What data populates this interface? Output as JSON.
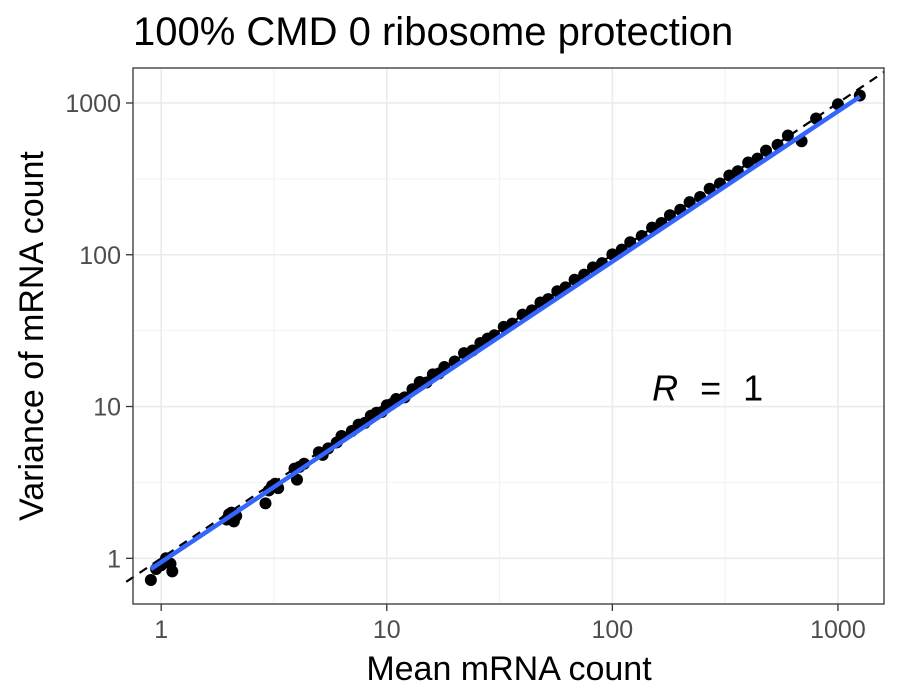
{
  "chart_data": {
    "type": "scatter",
    "title": "100% CMD 0 ribosome protection",
    "xlabel": "Mean mRNA count",
    "ylabel": "Variance of mRNA count",
    "x_scale": "log10",
    "y_scale": "log10",
    "xlim": [
      0.75,
      1600
    ],
    "ylim": [
      0.5,
      1700
    ],
    "x_ticks": [
      1,
      10,
      100,
      1000
    ],
    "x_tick_labels": [
      "1",
      "10",
      "100",
      "1000"
    ],
    "y_ticks": [
      1,
      10,
      100,
      1000
    ],
    "y_tick_labels": [
      "1",
      "10",
      "100",
      "1000"
    ],
    "grid": true,
    "annotation": {
      "symbol": "R",
      "equals": "=",
      "value": "1",
      "x": 150,
      "y": 11
    },
    "series": [
      {
        "name": "points",
        "kind": "scatter",
        "color": "#000000",
        "points": [
          [
            0.9,
            0.72
          ],
          [
            0.95,
            0.85
          ],
          [
            1.0,
            0.9
          ],
          [
            1.05,
            1.0
          ],
          [
            1.1,
            0.92
          ],
          [
            1.12,
            0.82
          ],
          [
            1.95,
            1.8
          ],
          [
            2.0,
            1.95
          ],
          [
            2.05,
            2.0
          ],
          [
            2.1,
            1.75
          ],
          [
            2.15,
            1.9
          ],
          [
            2.9,
            2.3
          ],
          [
            3.0,
            2.8
          ],
          [
            3.1,
            3.0
          ],
          [
            3.2,
            3.1
          ],
          [
            3.3,
            2.9
          ],
          [
            3.9,
            3.9
          ],
          [
            4.0,
            3.3
          ],
          [
            4.1,
            4.0
          ],
          [
            4.3,
            4.2
          ],
          [
            5.0,
            5.0
          ],
          [
            5.2,
            4.8
          ],
          [
            5.5,
            5.3
          ],
          [
            6.0,
            5.8
          ],
          [
            6.3,
            6.4
          ],
          [
            7.0,
            6.9
          ],
          [
            7.5,
            7.6
          ],
          [
            8.0,
            7.8
          ],
          [
            8.5,
            8.7
          ],
          [
            9.0,
            9.1
          ],
          [
            9.5,
            9.2
          ],
          [
            10.0,
            10.2
          ],
          [
            10.5,
            10.4
          ],
          [
            11.0,
            11.2
          ],
          [
            12.0,
            11.5
          ],
          [
            13.0,
            13.0
          ],
          [
            14.0,
            14.5
          ],
          [
            15.0,
            14.4
          ],
          [
            16.0,
            16.3
          ],
          [
            17.0,
            16.5
          ],
          [
            18.0,
            18.2
          ],
          [
            20.0,
            19.8
          ],
          [
            22.0,
            22.5
          ],
          [
            24.0,
            23.4
          ],
          [
            26.0,
            26.2
          ],
          [
            28.0,
            28.0
          ],
          [
            30.0,
            29.5
          ],
          [
            33.0,
            33.5
          ],
          [
            36.0,
            35.2
          ],
          [
            40.0,
            40.3
          ],
          [
            44.0,
            43.0
          ],
          [
            48.0,
            48.5
          ],
          [
            52.0,
            51.0
          ],
          [
            57.0,
            57.5
          ],
          [
            62.0,
            61.0
          ],
          [
            68.0,
            68.5
          ],
          [
            75.0,
            74.0
          ],
          [
            82.0,
            82.5
          ],
          [
            90.0,
            88.0
          ],
          [
            100.0,
            100.5
          ],
          [
            110.0,
            108.0
          ],
          [
            120.0,
            121.0
          ],
          [
            135.0,
            133.0
          ],
          [
            150.0,
            151.0
          ],
          [
            165.0,
            162.0
          ],
          [
            180.0,
            182.0
          ],
          [
            200.0,
            198.0
          ],
          [
            220.0,
            222.0
          ],
          [
            245.0,
            240.0
          ],
          [
            270.0,
            272.0
          ],
          [
            300.0,
            295.0
          ],
          [
            330.0,
            333.0
          ],
          [
            360.0,
            355.0
          ],
          [
            400.0,
            405.0
          ],
          [
            440.0,
            430.0
          ],
          [
            480.0,
            485.0
          ],
          [
            540.0,
            530.0
          ],
          [
            600.0,
            610.0
          ],
          [
            690.0,
            560.0
          ],
          [
            800.0,
            790.0
          ],
          [
            1000.0,
            980.0
          ],
          [
            1250.0,
            1120.0
          ]
        ]
      },
      {
        "name": "fit",
        "kind": "line",
        "color": "#3366FF",
        "points": [
          [
            0.9,
            0.85
          ],
          [
            1250.0,
            1100.0
          ]
        ]
      },
      {
        "name": "identity",
        "kind": "dashed-line",
        "color": "#000000",
        "points": [
          [
            0.7,
            0.7
          ],
          [
            1600.0,
            1600.0
          ]
        ]
      }
    ]
  }
}
